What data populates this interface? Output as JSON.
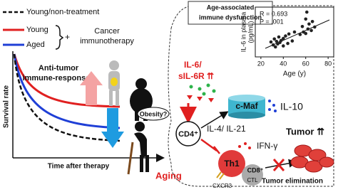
{
  "legend": {
    "items": [
      "Young/non-treatment",
      "Young",
      "Aged"
    ],
    "treatment": [
      "Cancer",
      "immunotherapy"
    ]
  },
  "survival_panel": {
    "y_label": "Survival rate",
    "x_label": "Time after therapy",
    "annotation": [
      "Anti-tumor",
      "immune-responses"
    ],
    "obesity": "Obesity?",
    "aging": "Aging"
  },
  "mechanism": {
    "header": [
      "Age-associated",
      "immune dysfunction"
    ],
    "cytokine": [
      "IL-6/",
      "sIL-6R ⇈"
    ],
    "cd4": "CD4⁺",
    "cmaf": "c-Maf",
    "il10": "IL-10",
    "il4_il21": "IL-4/ IL-21",
    "th1": "Th1",
    "cxcr3": "CXCR3",
    "cd8": "CD8⁺",
    "ctl": "CTL",
    "ifng": "IFN-γ",
    "tumor": "Tumor ⇈",
    "elimination": "Tumor elimination"
  },
  "chart_data": {
    "type": "scatter",
    "stat_r": "R = 0.693",
    "stat_p": "P = .001",
    "x_label": "Age (y)",
    "y_label": "IL-6 in plasma",
    "y_label_unit": "(pg/mL)",
    "xlim": [
      15,
      85
    ],
    "xticks": [
      20,
      40,
      60,
      80
    ],
    "ylim": [
      0,
      10
    ],
    "color": "#222",
    "x": [
      29,
      31,
      32,
      33,
      34,
      35,
      36,
      37,
      38,
      40,
      40,
      42,
      44,
      45,
      48,
      50,
      55,
      57,
      58,
      60,
      60,
      61,
      62,
      63,
      65,
      66,
      68
    ],
    "y": [
      3.0,
      2.4,
      3.6,
      2.0,
      3.1,
      2.6,
      4.0,
      2.9,
      3.3,
      2.2,
      3.7,
      4.2,
      2.7,
      4.6,
      3.2,
      5.0,
      4.5,
      6.1,
      5.0,
      4.7,
      7.6,
      9.0,
      5.6,
      6.6,
      5.3,
      7.1,
      6.0
    ]
  }
}
